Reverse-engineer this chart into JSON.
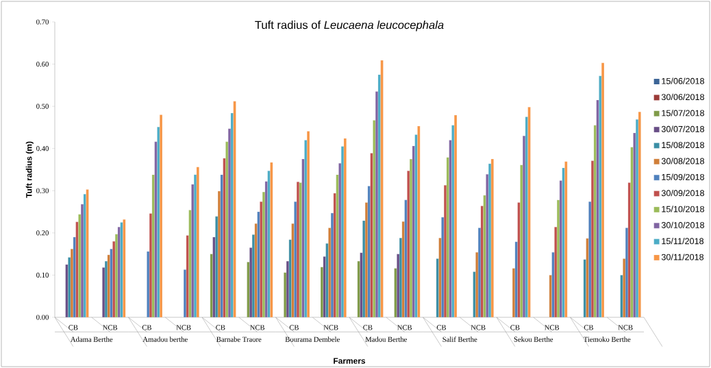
{
  "chart_data": {
    "type": "bar",
    "title": "Tuft radius of *Leucaena leucocephala*",
    "xlabel": "Farmers",
    "ylabel": "Tuft radius (m)",
    "categories": [
      "CB",
      "NCB",
      "CB",
      "NCB",
      "CB",
      "NCB",
      "CB",
      "NCB",
      "CB",
      "NCB",
      "CB",
      "NCB",
      "CB",
      "NCB",
      "CB",
      "NCB"
    ],
    "annotations": [
      "Adama Berthe",
      "Amadou berthe",
      "Barnabe Traore",
      "Bourama Dembele",
      "Madou Berthe",
      "Salif Berthe",
      "Sekou Berthe",
      "Tiemoko Berthe"
    ],
    "ylim": [
      0,
      0.7
    ],
    "yticks": [
      {
        "value": 0,
        "label": "0.00"
      },
      {
        "value": 0.1,
        "label": "0.10"
      },
      {
        "value": 0.2,
        "label": "0.20"
      },
      {
        "value": 0.3,
        "label": "0.30"
      },
      {
        "value": 0.4,
        "label": "0.40"
      },
      {
        "value": 0.5,
        "label": "0.50"
      },
      {
        "value": 0.6,
        "label": "0.60"
      },
      {
        "value": 0.7,
        "label": "0.70"
      }
    ],
    "grid": false,
    "legend": "right",
    "series": [
      {
        "name": "15/06/2018",
        "color": "#3c6496",
        "values": [
          null,
          null,
          null,
          null,
          null,
          null,
          null,
          null,
          null,
          null,
          null,
          null,
          null,
          null,
          null,
          null
        ]
      },
      {
        "name": "30/06/2018",
        "color": "#9b3b38",
        "values": [
          null,
          null,
          null,
          null,
          null,
          null,
          null,
          null,
          null,
          null,
          null,
          null,
          null,
          null,
          null,
          null
        ]
      },
      {
        "name": "15/07/2018",
        "color": "#7f9a48",
        "values": [
          null,
          null,
          null,
          null,
          0.15,
          0.131,
          0.106,
          0.119,
          0.133,
          0.116,
          null,
          null,
          null,
          null,
          null,
          null
        ]
      },
      {
        "name": "30/07/2018",
        "color": "#684e86",
        "values": [
          0.125,
          0.118,
          null,
          null,
          0.19,
          0.165,
          0.133,
          0.144,
          0.153,
          0.15,
          null,
          null,
          null,
          null,
          null,
          null
        ]
      },
      {
        "name": "15/08/2018",
        "color": "#3a8ea5",
        "values": [
          0.142,
          0.133,
          null,
          null,
          0.239,
          0.196,
          0.184,
          0.175,
          0.229,
          0.188,
          0.139,
          0.108,
          null,
          null,
          0.137,
          0.1
        ]
      },
      {
        "name": "30/08/2018",
        "color": "#d07e38",
        "values": [
          0.162,
          0.148,
          null,
          null,
          0.299,
          0.222,
          0.222,
          0.212,
          0.272,
          0.227,
          0.188,
          0.154,
          0.116,
          0.1,
          0.187,
          0.139
        ]
      },
      {
        "name": "15/09/2018",
        "color": "#4f81bd",
        "values": [
          0.19,
          0.162,
          0.156,
          0.113,
          0.338,
          0.25,
          0.274,
          0.247,
          0.311,
          0.278,
          0.237,
          0.212,
          0.179,
          0.154,
          0.274,
          0.212
        ]
      },
      {
        "name": "30/09/2018",
        "color": "#c0504d",
        "values": [
          0.226,
          0.18,
          0.246,
          0.194,
          0.377,
          0.274,
          0.321,
          0.294,
          0.389,
          0.347,
          0.313,
          0.264,
          0.272,
          0.214,
          0.371,
          0.319
        ]
      },
      {
        "name": "15/10/2018",
        "color": "#9bbb59",
        "values": [
          0.244,
          0.197,
          0.338,
          0.254,
          0.416,
          0.297,
          0.319,
          0.338,
          0.467,
          0.375,
          0.379,
          0.289,
          0.361,
          0.278,
          0.455,
          0.403
        ]
      },
      {
        "name": "30/10/2018",
        "color": "#8064a2",
        "values": [
          0.268,
          0.214,
          0.416,
          0.315,
          0.447,
          0.322,
          0.375,
          0.365,
          0.535,
          0.406,
          0.42,
          0.339,
          0.43,
          0.324,
          0.515,
          0.437
        ]
      },
      {
        "name": "15/11/2018",
        "color": "#4bacc6",
        "values": [
          0.292,
          0.225,
          0.451,
          0.338,
          0.484,
          0.347,
          0.42,
          0.405,
          0.575,
          0.433,
          0.455,
          0.364,
          0.475,
          0.354,
          0.572,
          0.469
        ]
      },
      {
        "name": "30/11/2018",
        "color": "#f79646",
        "values": [
          0.303,
          0.232,
          0.48,
          0.356,
          0.512,
          0.367,
          0.441,
          0.424,
          0.609,
          0.453,
          0.479,
          0.375,
          0.498,
          0.369,
          0.603,
          0.487
        ]
      }
    ]
  }
}
